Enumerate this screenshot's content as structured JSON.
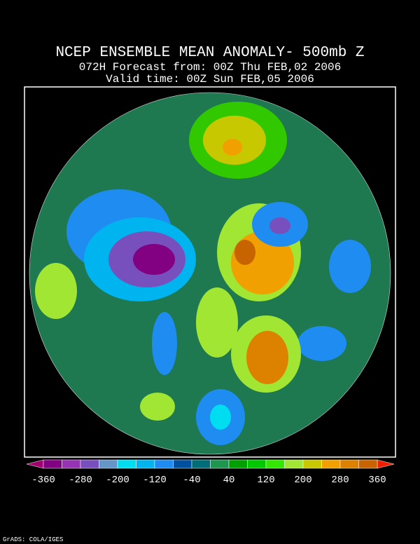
{
  "header": {
    "title": "NCEP ENSEMBLE MEAN ANOMALY- 500mb Z",
    "forecast": "072H Forecast from: 00Z Thu FEB,02 2006",
    "valid": "Valid time: 00Z Sun FEB,05 2006"
  },
  "colorbar": {
    "labels": [
      "-360",
      "-280",
      "-200",
      "-120",
      "-40",
      "40",
      "120",
      "200",
      "280",
      "360"
    ],
    "low_color": "#a0006e",
    "colors": [
      "#820082",
      "#9632b4",
      "#7850be",
      "#6496c8",
      "#00dcf0",
      "#00b4f0",
      "#1e8cf0",
      "#0050a0",
      "#006e78",
      "#1e9650",
      "#00a000",
      "#00c800",
      "#32e600",
      "#a0e632",
      "#c8c800",
      "#f0a000",
      "#dc8200",
      "#c86400"
    ],
    "high_color": "#f01e00"
  },
  "footer": "GrADS: COLA/IGES"
}
